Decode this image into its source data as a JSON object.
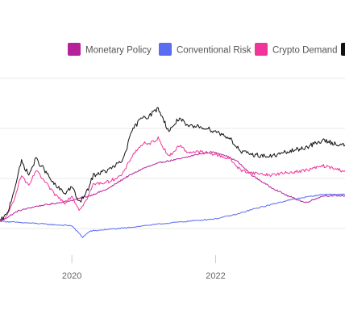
{
  "chart_data": {
    "type": "line",
    "title": "",
    "xlabel": "",
    "ylabel": "",
    "x_ticks": [
      "2020",
      "2022"
    ],
    "xlim": [
      2019.0,
      2023.8
    ],
    "ylim": [
      -60,
      310
    ],
    "grid": true,
    "legend_position": "top",
    "series": [
      {
        "name": "Monetary Policy",
        "color": "#b5229a",
        "x": [
          2019.0,
          2019.1,
          2019.25,
          2019.5,
          2019.75,
          2020.0,
          2020.25,
          2020.5,
          2020.75,
          2021.0,
          2021.25,
          2021.5,
          2021.75,
          2021.95,
          2022.1,
          2022.3,
          2022.5,
          2022.75,
          2023.0,
          2023.25,
          2023.5,
          2023.8
        ],
        "values": [
          0,
          8,
          22,
          32,
          38,
          45,
          55,
          70,
          95,
          115,
          128,
          135,
          145,
          150,
          145,
          130,
          100,
          75,
          55,
          40,
          55,
          55
        ]
      },
      {
        "name": "Conventional Risk",
        "color": "#5a6cf2",
        "x": [
          2019.0,
          2019.25,
          2019.5,
          2019.75,
          2020.0,
          2020.15,
          2020.25,
          2020.5,
          2020.75,
          2021.0,
          2021.5,
          2022.0,
          2022.3,
          2022.5,
          2022.75,
          2023.0,
          2023.25,
          2023.5,
          2023.8
        ],
        "values": [
          0,
          -3,
          -5,
          -8,
          -10,
          -35,
          -22,
          -18,
          -15,
          -10,
          -2,
          5,
          15,
          25,
          35,
          45,
          52,
          58,
          58
        ]
      },
      {
        "name": "Crypto Demand",
        "color": "#f0359a",
        "x": [
          2019.0,
          2019.1,
          2019.2,
          2019.3,
          2019.4,
          2019.5,
          2019.6,
          2019.75,
          2019.9,
          2020.0,
          2020.1,
          2020.2,
          2020.3,
          2020.5,
          2020.7,
          2020.85,
          2021.0,
          2021.05,
          2021.2,
          2021.35,
          2021.5,
          2021.6,
          2021.8,
          2022.0,
          2022.2,
          2022.35,
          2022.5,
          2022.75,
          2023.0,
          2023.25,
          2023.5,
          2023.75,
          2023.8
        ],
        "values": [
          0,
          10,
          50,
          100,
          75,
          110,
          90,
          60,
          40,
          55,
          25,
          45,
          80,
          85,
          100,
          145,
          170,
          165,
          180,
          140,
          165,
          150,
          150,
          145,
          135,
          110,
          105,
          100,
          105,
          110,
          120,
          110,
          110
        ]
      },
      {
        "name": "",
        "color": "#111111",
        "x": [
          2019.0,
          2019.1,
          2019.2,
          2019.3,
          2019.4,
          2019.5,
          2019.6,
          2019.75,
          2019.9,
          2020.0,
          2020.1,
          2020.2,
          2020.3,
          2020.5,
          2020.7,
          2020.85,
          2021.0,
          2021.05,
          2021.2,
          2021.35,
          2021.5,
          2021.6,
          2021.8,
          2022.0,
          2022.2,
          2022.35,
          2022.5,
          2022.75,
          2023.0,
          2023.25,
          2023.5,
          2023.75,
          2023.8
        ],
        "values": [
          0,
          15,
          70,
          130,
          100,
          135,
          115,
          80,
          60,
          75,
          40,
          60,
          100,
          110,
          130,
          200,
          230,
          225,
          245,
          195,
          225,
          205,
          205,
          195,
          180,
          150,
          145,
          140,
          150,
          160,
          175,
          165,
          165
        ]
      }
    ]
  }
}
